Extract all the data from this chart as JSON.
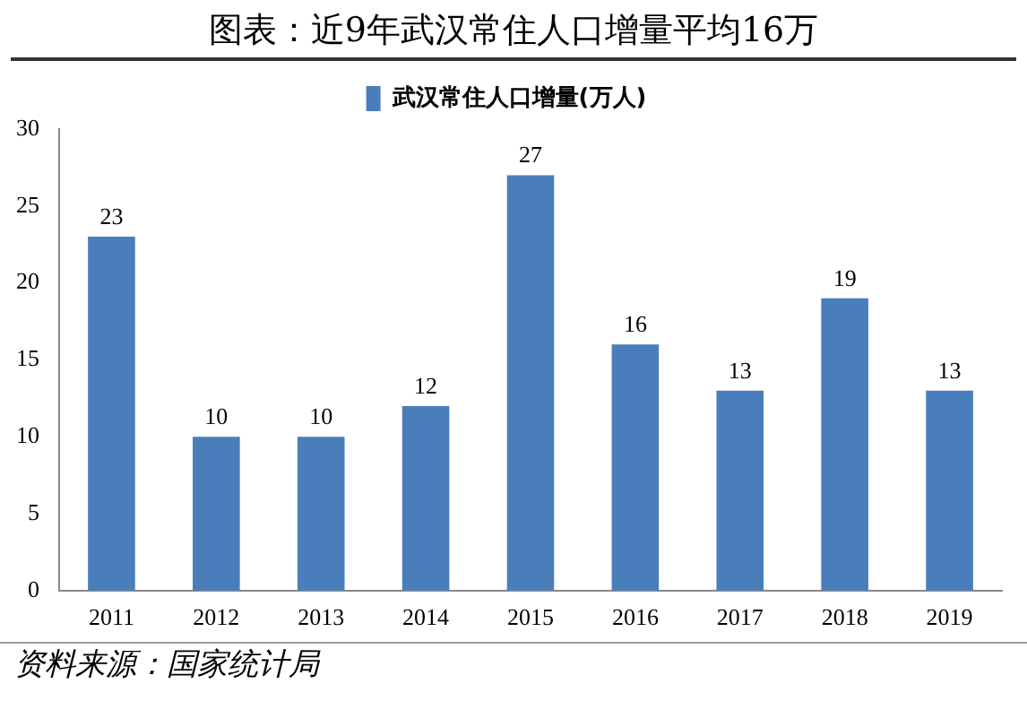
{
  "chart_data": {
    "type": "bar",
    "title": "图表：近9年武汉常住人口增量平均16万",
    "categories": [
      "2011",
      "2012",
      "2013",
      "2014",
      "2015",
      "2016",
      "2017",
      "2018",
      "2019"
    ],
    "series": [
      {
        "name": "武汉常住人口增量(万人)",
        "color": "#4a7ebb",
        "values": [
          23,
          10,
          10,
          12,
          27,
          16,
          13,
          19,
          13
        ]
      }
    ],
    "ylim": [
      0,
      30
    ],
    "yticks": [
      0,
      5,
      10,
      15,
      20,
      25,
      30
    ],
    "grid": false,
    "legend": "top",
    "data_labels": true,
    "annotations": [
      "资料来源：国家统计局"
    ]
  }
}
